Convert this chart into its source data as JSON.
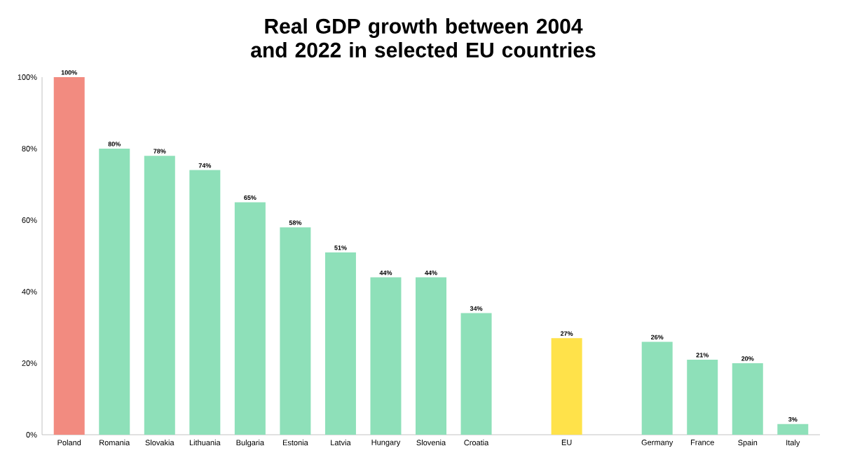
{
  "chart_data": {
    "type": "bar",
    "title": "Real GDP growth between 2004 and 2022 in selected EU countries",
    "categories": [
      "Poland",
      "Romania",
      "Slovakia",
      "Lithuania",
      "Bulgaria",
      "Estonia",
      "Latvia",
      "Hungary",
      "Slovenia",
      "Croatia",
      null,
      "EU",
      null,
      "Germany",
      "France",
      "Spain",
      "Italy"
    ],
    "values": [
      100,
      80,
      78,
      74,
      65,
      58,
      51,
      44,
      44,
      34,
      null,
      27,
      null,
      26,
      21,
      20,
      3
    ],
    "value_labels": [
      "100%",
      "80%",
      "78%",
      "74%",
      "65%",
      "58%",
      "51%",
      "44%",
      "44%",
      "34%",
      null,
      "27%",
      null,
      "26%",
      "21%",
      "20%",
      "3%"
    ],
    "colors": [
      "#f28b80",
      "#8ee0b9",
      "#8ee0b9",
      "#8ee0b9",
      "#8ee0b9",
      "#8ee0b9",
      "#8ee0b9",
      "#8ee0b9",
      "#8ee0b9",
      "#8ee0b9",
      "#8ee0b9",
      "#ffe24a",
      "#8ee0b9",
      "#8ee0b9",
      "#8ee0b9",
      "#8ee0b9",
      "#8ee0b9"
    ],
    "ylim": [
      0,
      100
    ],
    "yticks": [
      {
        "value": 0,
        "label": "0%"
      },
      {
        "value": 20,
        "label": "20%"
      },
      {
        "value": 40,
        "label": "40%"
      },
      {
        "value": 60,
        "label": "60%"
      },
      {
        "value": 80,
        "label": "80%"
      },
      {
        "value": 100,
        "label": "100%"
      }
    ],
    "grid": false
  }
}
